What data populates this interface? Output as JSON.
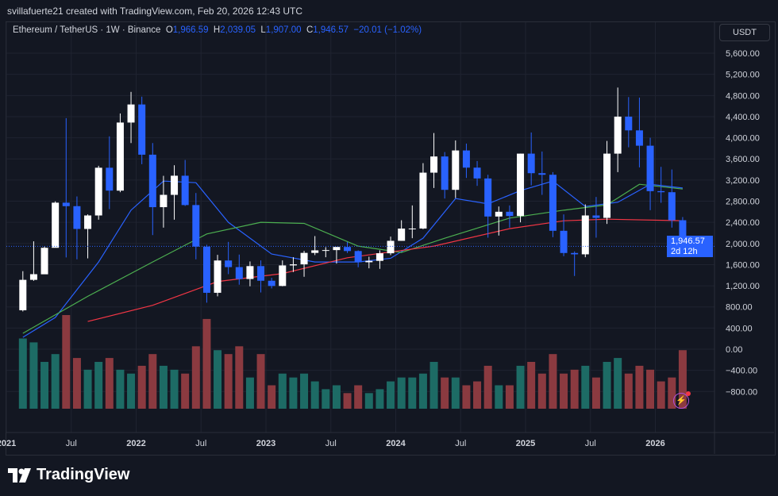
{
  "attribution": "svillafuerte21 created with TradingView.com, Feb 20, 2026 12:43 UTC",
  "legend": {
    "symbol": "Ethereum / TetherUS · 1W · Binance",
    "o_label": "O",
    "o": "1,966.59",
    "h_label": "H",
    "h": "2,039.05",
    "l_label": "L",
    "l": "1,907.00",
    "c_label": "C",
    "c": "1,946.57",
    "change": "−20.01 (−1.02%)"
  },
  "currency_button": "USDT",
  "last_price": {
    "value": "1,946.57",
    "countdown": "2d 12h"
  },
  "logo_text": "TradingView",
  "icons": {
    "logo": "tradingview-logo-icon",
    "alert": "lightning-icon"
  },
  "colors": {
    "background": "#131722",
    "up": "#ffffff",
    "down": "#2962ff",
    "vol_up": "#1d6b65",
    "vol_down": "#8b3a40",
    "ma_fast": "#2962ff",
    "ma_mid": "#4caf50",
    "ma_slow": "#f23645",
    "last_price": "#2962ff"
  },
  "chart_data": {
    "type": "candlestick",
    "title": "Ethereum / TetherUS · 1W · Binance",
    "y_ticks": [
      "5,600.00",
      "5,200.00",
      "4,800.00",
      "4,400.00",
      "4,000.00",
      "3,600.00",
      "3,200.00",
      "2,800.00",
      "2,400.00",
      "2,000.00",
      "1,600.00",
      "1,200.00",
      "800.00",
      "400.00",
      "0.00",
      "−400.00",
      "−800.00"
    ],
    "x_ticks": [
      {
        "label": "2021",
        "date": "2021-01"
      },
      {
        "label": "Jul",
        "date": "2021-07"
      },
      {
        "label": "2022",
        "date": "2022-01"
      },
      {
        "label": "Jul",
        "date": "2022-07"
      },
      {
        "label": "2023",
        "date": "2023-01"
      },
      {
        "label": "Jul",
        "date": "2023-07"
      },
      {
        "label": "2024",
        "date": "2024-01"
      },
      {
        "label": "Jul",
        "date": "2024-07"
      },
      {
        "label": "2025",
        "date": "2025-01"
      },
      {
        "label": "Jul",
        "date": "2025-07"
      },
      {
        "label": "2026",
        "date": "2026-01"
      }
    ],
    "ylim": [
      -1000,
      5900
    ],
    "grid": true,
    "candles_columns": [
      "date",
      "open",
      "high",
      "low",
      "close",
      "volume"
    ],
    "candles": [
      [
        "2021-01",
        737,
        1476,
        714,
        1312,
        90
      ],
      [
        "2021-02",
        1312,
        2041,
        1293,
        1419,
        85
      ],
      [
        "2021-03",
        1417,
        1943,
        1436,
        1918,
        60
      ],
      [
        "2021-04",
        1918,
        2797,
        1936,
        2772,
        70
      ],
      [
        "2021-05",
        2772,
        4372,
        1737,
        2706,
        120
      ],
      [
        "2021-06",
        2706,
        2890,
        1700,
        2275,
        65
      ],
      [
        "2021-07",
        2275,
        2551,
        1718,
        2530,
        50
      ],
      [
        "2021-08",
        2530,
        3470,
        2450,
        3433,
        60
      ],
      [
        "2021-09",
        3433,
        4027,
        2650,
        3000,
        65
      ],
      [
        "2021-10",
        3000,
        4460,
        2970,
        4288,
        50
      ],
      [
        "2021-11",
        4288,
        4868,
        3900,
        4630,
        45
      ],
      [
        "2021-12",
        4630,
        4778,
        3500,
        3680,
        55
      ],
      [
        "2022-01",
        3680,
        3900,
        2159,
        2687,
        70
      ],
      [
        "2022-02",
        2687,
        3280,
        2300,
        2920,
        55
      ],
      [
        "2022-03",
        2920,
        3480,
        2450,
        3282,
        50
      ],
      [
        "2022-04",
        3282,
        3580,
        2710,
        2727,
        45
      ],
      [
        "2022-05",
        2727,
        2955,
        1700,
        1941,
        80
      ],
      [
        "2022-06",
        1941,
        1975,
        880,
        1067,
        115
      ],
      [
        "2022-07",
        1067,
        1785,
        1000,
        1678,
        75
      ],
      [
        "2022-08",
        1678,
        2030,
        1420,
        1553,
        70
      ],
      [
        "2022-09",
        1553,
        1790,
        1220,
        1328,
        80
      ],
      [
        "2022-10",
        1328,
        1660,
        1190,
        1572,
        40
      ],
      [
        "2022-11",
        1572,
        1680,
        1073,
        1295,
        70
      ],
      [
        "2022-12",
        1295,
        1350,
        1150,
        1196,
        30
      ],
      [
        "2023-01",
        1196,
        1680,
        1190,
        1585,
        45
      ],
      [
        "2023-02",
        1585,
        1740,
        1460,
        1605,
        40
      ],
      [
        "2023-03",
        1605,
        1860,
        1370,
        1822,
        45
      ],
      [
        "2023-04",
        1822,
        2140,
        1780,
        1870,
        35
      ],
      [
        "2023-05",
        1870,
        1930,
        1740,
        1875,
        25
      ],
      [
        "2023-06",
        1875,
        1930,
        1620,
        1934,
        30
      ],
      [
        "2023-07",
        1934,
        2030,
        1820,
        1857,
        20
      ],
      [
        "2023-08",
        1857,
        1870,
        1550,
        1645,
        30
      ],
      [
        "2023-09",
        1645,
        1750,
        1530,
        1671,
        20
      ],
      [
        "2023-10",
        1671,
        1870,
        1520,
        1815,
        25
      ],
      [
        "2023-11",
        1815,
        2130,
        1780,
        2050,
        35
      ],
      [
        "2023-12",
        2050,
        2440,
        2050,
        2282,
        40
      ],
      [
        "2024-01",
        2282,
        2720,
        2100,
        2283,
        40
      ],
      [
        "2024-02",
        2283,
        3520,
        2270,
        3340,
        45
      ],
      [
        "2024-03",
        3340,
        4090,
        3050,
        3646,
        60
      ],
      [
        "2024-04",
        3646,
        3730,
        2850,
        3015,
        40
      ],
      [
        "2024-05",
        3015,
        3950,
        2860,
        3760,
        40
      ],
      [
        "2024-06",
        3760,
        3890,
        3240,
        3435,
        30
      ],
      [
        "2024-07",
        3435,
        3560,
        3090,
        3230,
        35
      ],
      [
        "2024-08",
        3230,
        3300,
        2110,
        2510,
        55
      ],
      [
        "2024-09",
        2510,
        2700,
        2150,
        2600,
        30
      ],
      [
        "2024-10",
        2600,
        2720,
        2300,
        2520,
        30
      ],
      [
        "2024-11",
        2520,
        3700,
        2400,
        3700,
        55
      ],
      [
        "2024-12",
        3700,
        4100,
        3100,
        3330,
        60
      ],
      [
        "2025-01",
        3330,
        3740,
        2920,
        3300,
        45
      ],
      [
        "2025-02",
        3300,
        3350,
        2120,
        2240,
        70
      ],
      [
        "2025-03",
        2240,
        2550,
        1760,
        1820,
        45
      ],
      [
        "2025-04",
        1820,
        1850,
        1385,
        1795,
        50
      ],
      [
        "2025-05",
        1795,
        2740,
        1740,
        2530,
        55
      ],
      [
        "2025-06",
        2530,
        2880,
        2110,
        2485,
        40
      ],
      [
        "2025-07",
        2485,
        3940,
        2370,
        3700,
        60
      ],
      [
        "2025-08",
        3700,
        4950,
        3350,
        4400,
        65
      ],
      [
        "2025-09",
        4400,
        4770,
        3820,
        4140,
        45
      ],
      [
        "2025-10",
        4140,
        4760,
        3440,
        3850,
        55
      ],
      [
        "2025-11",
        3850,
        4000,
        2630,
        2990,
        50
      ],
      [
        "2025-12",
        2990,
        3450,
        2770,
        2970,
        35
      ],
      [
        "2026-01",
        2970,
        3400,
        2300,
        2440,
        40
      ],
      [
        "2026-02",
        2440,
        2500,
        1740,
        1946.57,
        75
      ]
    ],
    "moving_averages": [
      {
        "color": "#2962ff",
        "points": [
          [
            "2021-01",
            225
          ],
          [
            "2021-04",
            600
          ],
          [
            "2021-08",
            1650
          ],
          [
            "2021-11",
            2630
          ],
          [
            "2022-02",
            3180
          ],
          [
            "2022-05",
            3150
          ],
          [
            "2022-08",
            2400
          ],
          [
            "2022-12",
            1800
          ],
          [
            "2023-04",
            1650
          ],
          [
            "2023-08",
            1650
          ],
          [
            "2023-11",
            1720
          ],
          [
            "2024-02",
            2100
          ],
          [
            "2024-05",
            2850
          ],
          [
            "2024-08",
            2750
          ],
          [
            "2024-11",
            3000
          ],
          [
            "2025-02",
            3180
          ],
          [
            "2025-05",
            2700
          ],
          [
            "2025-08",
            2780
          ],
          [
            "2025-11",
            3120
          ],
          [
            "2026-02",
            3050
          ]
        ]
      },
      {
        "color": "#4caf50",
        "points": [
          [
            "2021-01",
            300
          ],
          [
            "2021-07",
            1000
          ],
          [
            "2022-01",
            1650
          ],
          [
            "2022-06",
            2180
          ],
          [
            "2022-11",
            2400
          ],
          [
            "2023-03",
            2380
          ],
          [
            "2023-08",
            1950
          ],
          [
            "2023-12",
            1830
          ],
          [
            "2024-04",
            2100
          ],
          [
            "2024-10",
            2480
          ],
          [
            "2025-03",
            2630
          ],
          [
            "2025-07",
            2730
          ],
          [
            "2025-10",
            3120
          ],
          [
            "2026-02",
            3030
          ]
        ]
      },
      {
        "color": "#f23645",
        "points": [
          [
            "2021-07",
            525
          ],
          [
            "2022-01",
            830
          ],
          [
            "2022-07",
            1280
          ],
          [
            "2023-01",
            1430
          ],
          [
            "2023-07",
            1730
          ],
          [
            "2024-03",
            1950
          ],
          [
            "2024-10",
            2280
          ],
          [
            "2025-03",
            2430
          ],
          [
            "2025-07",
            2460
          ],
          [
            "2026-02",
            2430
          ]
        ]
      }
    ]
  }
}
